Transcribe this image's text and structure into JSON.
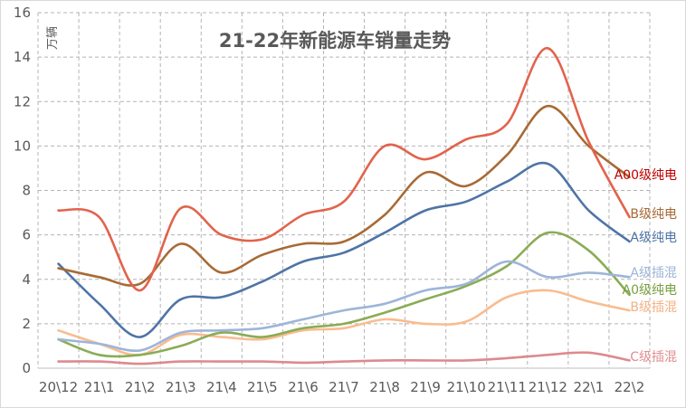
{
  "chart_data": {
    "type": "line",
    "title": "21-22年新能源车销量走势",
    "ylabel": "万辆",
    "ylim": [
      0,
      16
    ],
    "yticks": [
      0,
      2,
      4,
      6,
      8,
      10,
      12,
      14,
      16
    ],
    "grid": true,
    "categories": [
      "20\\12",
      "21\\1",
      "21\\2",
      "21\\3",
      "21\\4",
      "21\\5",
      "21\\6",
      "21\\7",
      "21\\8",
      "21\\9",
      "21\\10",
      "21\\11",
      "21\\12",
      "22\\1",
      "22\\2"
    ],
    "series": [
      {
        "name": "A00级纯电",
        "color": "#e2634c",
        "label_color": "#c00000",
        "values": [
          7.1,
          6.8,
          3.5,
          7.2,
          6.0,
          5.8,
          6.9,
          7.5,
          10.0,
          9.4,
          10.3,
          11.0,
          14.4,
          10.2,
          6.8
        ]
      },
      {
        "name": "B级纯电",
        "color": "#a86a35",
        "label_color": "#a86a35",
        "values": [
          4.5,
          4.1,
          3.8,
          5.6,
          4.3,
          5.1,
          5.6,
          5.7,
          6.9,
          8.8,
          8.2,
          9.6,
          11.8,
          10.0,
          8.6
        ]
      },
      {
        "name": "A级纯电",
        "color": "#4f74a6",
        "label_color": "#4f74a6",
        "values": [
          4.7,
          2.9,
          1.4,
          3.1,
          3.2,
          3.9,
          4.8,
          5.2,
          6.1,
          7.1,
          7.5,
          8.4,
          9.2,
          7.1,
          5.7
        ]
      },
      {
        "name": "A级插混",
        "color": "#9db5d9",
        "label_color": "#9db5d9",
        "values": [
          1.3,
          1.1,
          0.8,
          1.6,
          1.7,
          1.8,
          2.2,
          2.6,
          2.9,
          3.5,
          3.8,
          4.8,
          4.1,
          4.3,
          4.1
        ]
      },
      {
        "name": "A0级纯电",
        "color": "#8aac55",
        "label_color": "#78a040",
        "values": [
          1.3,
          0.6,
          0.6,
          1.0,
          1.6,
          1.4,
          1.8,
          2.0,
          2.5,
          3.1,
          3.7,
          4.6,
          6.1,
          5.3,
          3.3
        ]
      },
      {
        "name": "B级插混",
        "color": "#f9bc8f",
        "label_color": "#f4b183",
        "values": [
          1.7,
          1.1,
          0.6,
          1.5,
          1.4,
          1.3,
          1.7,
          1.8,
          2.2,
          2.0,
          2.1,
          3.2,
          3.5,
          3.0,
          2.6
        ]
      },
      {
        "name": "C级插混",
        "color": "#dd8a8e",
        "label_color": "#e28d92",
        "values": [
          0.3,
          0.3,
          0.2,
          0.3,
          0.3,
          0.3,
          0.25,
          0.3,
          0.35,
          0.35,
          0.35,
          0.45,
          0.6,
          0.7,
          0.35
        ]
      }
    ]
  }
}
